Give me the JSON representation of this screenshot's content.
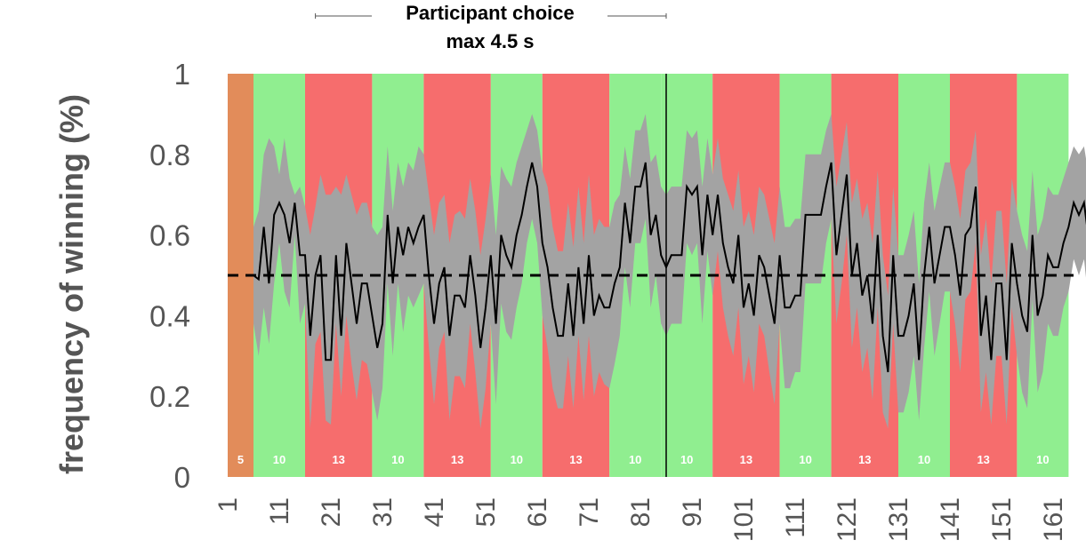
{
  "chart_data": {
    "type": "line",
    "title": "Participant choice",
    "subtitle": "max 4.5 s",
    "ylabel": "frequency of winning (%)",
    "xlabel": "",
    "xlim": [
      1,
      163
    ],
    "ylim": [
      0,
      1
    ],
    "y_ticks": [
      "0",
      "0.2",
      "0.4",
      "0.6",
      "0.8",
      "1"
    ],
    "y_tick_values": [
      0,
      0.2,
      0.4,
      0.6,
      0.8,
      1
    ],
    "x_ticks": [
      "1",
      "11",
      "21",
      "31",
      "41",
      "51",
      "61",
      "71",
      "81",
      "91",
      "101",
      "111",
      "121",
      "131",
      "141",
      "151",
      "161"
    ],
    "x_tick_values": [
      1,
      11,
      21,
      31,
      41,
      51,
      61,
      71,
      81,
      91,
      101,
      111,
      121,
      131,
      141,
      151,
      161
    ],
    "reference_line": 0.5,
    "divider_x": 86,
    "title_bracket": [
      18,
      86
    ],
    "blocks": [
      {
        "label": "5",
        "start": 1,
        "end": 6,
        "color": "#e28c5a"
      },
      {
        "label": "10",
        "start": 6,
        "end": 16,
        "color": "#90ee90"
      },
      {
        "label": "13",
        "start": 16,
        "end": 29,
        "color": "#f66d6d"
      },
      {
        "label": "10",
        "start": 29,
        "end": 39,
        "color": "#90ee90"
      },
      {
        "label": "13",
        "start": 39,
        "end": 52,
        "color": "#f66d6d"
      },
      {
        "label": "10",
        "start": 52,
        "end": 62,
        "color": "#90ee90"
      },
      {
        "label": "13",
        "start": 62,
        "end": 75,
        "color": "#f66d6d"
      },
      {
        "label": "10",
        "start": 75,
        "end": 85,
        "color": "#90ee90"
      },
      {
        "label": "10",
        "start": 85,
        "end": 95,
        "color": "#90ee90"
      },
      {
        "label": "13",
        "start": 95,
        "end": 108,
        "color": "#f66d6d"
      },
      {
        "label": "10",
        "start": 108,
        "end": 118,
        "color": "#90ee90"
      },
      {
        "label": "13",
        "start": 118,
        "end": 131,
        "color": "#f66d6d"
      },
      {
        "label": "10",
        "start": 131,
        "end": 141,
        "color": "#90ee90"
      },
      {
        "label": "13",
        "start": 141,
        "end": 154,
        "color": "#f66d6d"
      },
      {
        "label": "10",
        "start": 154,
        "end": 164,
        "color": "#90ee90"
      }
    ],
    "series": [
      {
        "type": "line",
        "color": "#000000",
        "x_start": 6,
        "values": [
          0.5,
          0.49,
          0.62,
          0.48,
          0.65,
          0.68,
          0.65,
          0.58,
          0.68,
          0.55,
          0.55,
          0.35,
          0.5,
          0.55,
          0.29,
          0.29,
          0.55,
          0.35,
          0.58,
          0.48,
          0.38,
          0.48,
          0.48,
          0.4,
          0.32,
          0.38,
          0.65,
          0.48,
          0.62,
          0.55,
          0.62,
          0.58,
          0.62,
          0.65,
          0.5,
          0.38,
          0.48,
          0.52,
          0.35,
          0.45,
          0.45,
          0.42,
          0.55,
          0.45,
          0.32,
          0.42,
          0.55,
          0.38,
          0.6,
          0.55,
          0.52,
          0.6,
          0.65,
          0.72,
          0.78,
          0.72,
          0.58,
          0.52,
          0.42,
          0.35,
          0.35,
          0.48,
          0.35,
          0.52,
          0.38,
          0.55,
          0.4,
          0.45,
          0.42,
          0.42,
          0.48,
          0.52,
          0.68,
          0.58,
          0.72,
          0.72,
          0.78,
          0.6,
          0.65,
          0.55,
          0.52,
          0.55,
          0.55,
          0.55,
          0.72,
          0.7,
          0.72,
          0.55,
          0.7,
          0.6,
          0.7,
          0.58,
          0.52,
          0.48,
          0.6,
          0.42,
          0.48,
          0.4,
          0.55,
          0.52,
          0.45,
          0.38,
          0.55,
          0.42,
          0.42,
          0.45,
          0.45,
          0.65,
          0.65,
          0.65,
          0.65,
          0.72,
          0.78,
          0.55,
          0.65,
          0.75,
          0.5,
          0.58,
          0.45,
          0.5,
          0.38,
          0.6,
          0.35,
          0.26,
          0.55,
          0.35,
          0.35,
          0.4,
          0.48,
          0.29,
          0.5,
          0.62,
          0.48,
          0.55,
          0.62,
          0.62,
          0.55,
          0.45,
          0.6,
          0.62,
          0.72,
          0.35,
          0.45,
          0.29,
          0.48,
          0.48,
          0.29,
          0.58,
          0.48,
          0.4,
          0.36,
          0.6,
          0.4,
          0.45,
          0.55,
          0.52,
          0.52,
          0.58,
          0.62,
          0.68,
          0.65,
          0.68,
          0.58,
          0.75
        ],
        "ci_upper": [
          0.62,
          0.66,
          0.8,
          0.84,
          0.82,
          0.75,
          0.84,
          0.74,
          0.7,
          0.72,
          0.67,
          0.6,
          0.67,
          0.75,
          0.7,
          0.7,
          0.72,
          0.7,
          0.75,
          0.7,
          0.65,
          0.68,
          0.68,
          0.62,
          0.6,
          0.62,
          0.82,
          0.66,
          0.78,
          0.72,
          0.78,
          0.76,
          0.82,
          0.8,
          0.7,
          0.6,
          0.68,
          0.7,
          0.58,
          0.65,
          0.66,
          0.64,
          0.74,
          0.66,
          0.55,
          0.64,
          0.75,
          0.6,
          0.77,
          0.74,
          0.72,
          0.78,
          0.82,
          0.86,
          0.9,
          0.86,
          0.76,
          0.72,
          0.62,
          0.56,
          0.56,
          0.68,
          0.57,
          0.72,
          0.58,
          0.75,
          0.6,
          0.64,
          0.62,
          0.62,
          0.68,
          0.7,
          0.82,
          0.74,
          0.86,
          0.86,
          0.9,
          0.78,
          0.8,
          0.72,
          0.7,
          0.72,
          0.72,
          0.72,
          0.86,
          0.84,
          0.86,
          0.72,
          0.84,
          0.75,
          0.84,
          0.74,
          0.7,
          0.66,
          0.76,
          0.62,
          0.66,
          0.6,
          0.72,
          0.7,
          0.64,
          0.58,
          0.72,
          0.62,
          0.62,
          0.64,
          0.64,
          0.8,
          0.8,
          0.8,
          0.8,
          0.86,
          0.9,
          0.72,
          0.8,
          0.88,
          0.68,
          0.74,
          0.64,
          0.68,
          0.58,
          0.76,
          0.55,
          0.45,
          0.72,
          0.55,
          0.55,
          0.6,
          0.66,
          0.48,
          0.68,
          0.78,
          0.66,
          0.72,
          0.78,
          0.78,
          0.72,
          0.64,
          0.76,
          0.78,
          0.86,
          0.55,
          0.64,
          0.48,
          0.66,
          0.66,
          0.48,
          0.74,
          0.66,
          0.6,
          0.56,
          0.76,
          0.6,
          0.64,
          0.72,
          0.7,
          0.7,
          0.74,
          0.78,
          0.82,
          0.8,
          0.82,
          0.74,
          0.88
        ],
        "ci_lower": [
          0.38,
          0.3,
          0.42,
          0.33,
          0.48,
          0.58,
          0.46,
          0.42,
          0.6,
          0.38,
          0.43,
          0.12,
          0.33,
          0.36,
          0.14,
          0.13,
          0.38,
          0.2,
          0.4,
          0.28,
          0.19,
          0.29,
          0.28,
          0.21,
          0.14,
          0.22,
          0.48,
          0.3,
          0.48,
          0.36,
          0.45,
          0.42,
          0.45,
          0.48,
          0.32,
          0.18,
          0.32,
          0.36,
          0.14,
          0.25,
          0.25,
          0.22,
          0.38,
          0.26,
          0.12,
          0.22,
          0.38,
          0.18,
          0.43,
          0.36,
          0.34,
          0.42,
          0.48,
          0.58,
          0.64,
          0.58,
          0.4,
          0.32,
          0.22,
          0.17,
          0.17,
          0.3,
          0.17,
          0.35,
          0.19,
          0.35,
          0.2,
          0.26,
          0.23,
          0.22,
          0.28,
          0.35,
          0.52,
          0.42,
          0.58,
          0.58,
          0.64,
          0.42,
          0.5,
          0.38,
          0.35,
          0.38,
          0.38,
          0.38,
          0.58,
          0.55,
          0.58,
          0.38,
          0.56,
          0.45,
          0.56,
          0.42,
          0.35,
          0.3,
          0.42,
          0.23,
          0.3,
          0.21,
          0.38,
          0.35,
          0.26,
          0.18,
          0.38,
          0.22,
          0.22,
          0.26,
          0.26,
          0.48,
          0.48,
          0.48,
          0.48,
          0.58,
          0.64,
          0.38,
          0.48,
          0.6,
          0.32,
          0.42,
          0.26,
          0.32,
          0.19,
          0.42,
          0.16,
          0.12,
          0.38,
          0.16,
          0.16,
          0.21,
          0.3,
          0.14,
          0.32,
          0.46,
          0.3,
          0.38,
          0.46,
          0.46,
          0.38,
          0.26,
          0.44,
          0.46,
          0.58,
          0.16,
          0.26,
          0.13,
          0.3,
          0.3,
          0.13,
          0.42,
          0.3,
          0.21,
          0.17,
          0.44,
          0.21,
          0.26,
          0.38,
          0.35,
          0.35,
          0.42,
          0.46,
          0.54,
          0.5,
          0.54,
          0.42,
          0.6
        ]
      }
    ],
    "colors": {
      "ci_band": "#a3a3a3",
      "reference_line": "#000000",
      "win_block": "#90ee90",
      "loss_block": "#f66d6d",
      "practice_block": "#e28c5a"
    }
  }
}
